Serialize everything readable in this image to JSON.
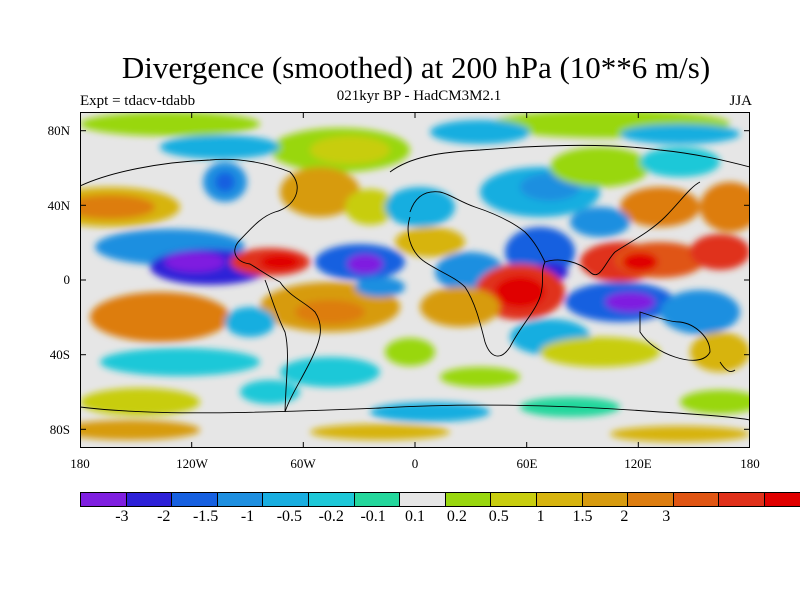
{
  "title": "Divergence (smoothed) at 200 hPa (10**6 m/s)",
  "subtitle": "021kyr BP - HadCM3M2.1",
  "left_label": "Expt = tdacv-tdabb",
  "right_label": "JJA",
  "axes": {
    "y_ticks": [
      "80N",
      "40N",
      "0",
      "40S",
      "80S"
    ],
    "x_ticks": [
      "180",
      "120W",
      "60W",
      "0",
      "60E",
      "120E",
      "180"
    ]
  },
  "colorbar": {
    "colors": [
      "#7f1fe0",
      "#2d21d8",
      "#1660e0",
      "#1e8fe0",
      "#19aee0",
      "#1dc8d8",
      "#24d79c",
      "#e6e6e6",
      "#99d70f",
      "#c8cd0f",
      "#d7b40f",
      "#d79b0f",
      "#dd7d10",
      "#e05513",
      "#e0301a",
      "#e00000"
    ],
    "labels": [
      "-3",
      "-2",
      "-1.5",
      "-1",
      "-0.5",
      "-0.2",
      "-0.1",
      "0.1",
      "0.2",
      "0.5",
      "1",
      "1.5",
      "2",
      "3"
    ]
  }
}
